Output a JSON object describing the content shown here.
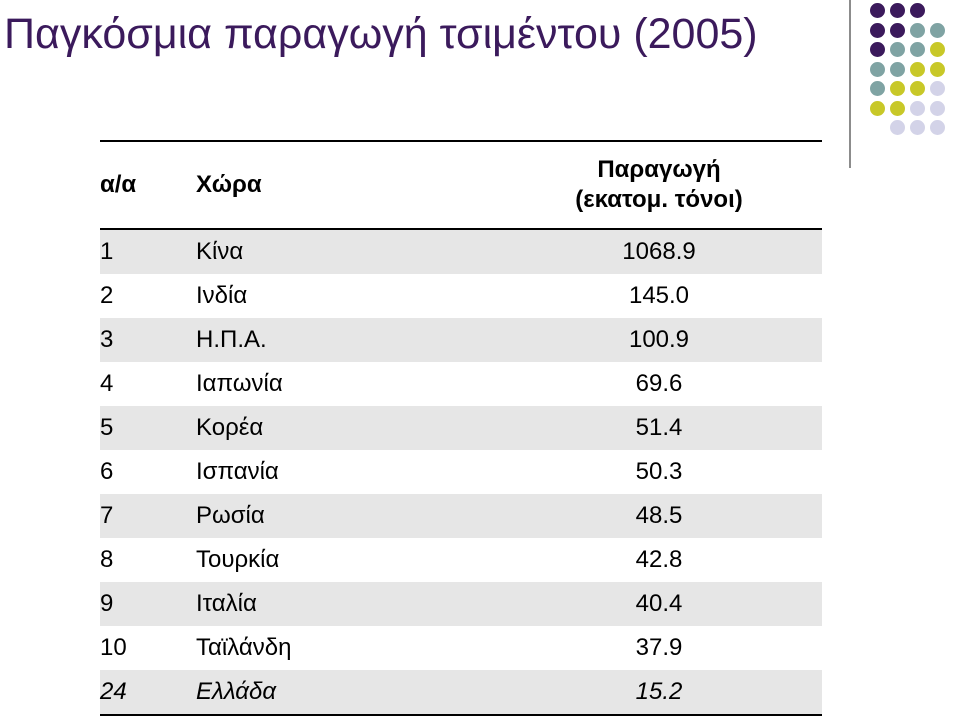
{
  "title": "Παγκόσμια παραγωγή τσιμέντου (2005)",
  "table": {
    "headers": {
      "rank": "α/α",
      "country": "Χώρα",
      "production_line1": "Παραγωγή",
      "production_line2": "(εκατομ. τόνοι)"
    },
    "rows": [
      {
        "rank": "1",
        "country": "Κίνα",
        "production": "1068.9"
      },
      {
        "rank": "2",
        "country": "Ινδία",
        "production": "145.0"
      },
      {
        "rank": "3",
        "country": "Η.Π.Α.",
        "production": "100.9"
      },
      {
        "rank": "4",
        "country": "Ιαπωνία",
        "production": "69.6"
      },
      {
        "rank": "5",
        "country": "Κορέα",
        "production": "51.4"
      },
      {
        "rank": "6",
        "country": "Ισπανία",
        "production": "50.3"
      },
      {
        "rank": "7",
        "country": "Ρωσία",
        "production": "48.5"
      },
      {
        "rank": "8",
        "country": "Τουρκία",
        "production": "42.8"
      },
      {
        "rank": "9",
        "country": "Ιταλία",
        "production": "40.4"
      },
      {
        "rank": "10",
        "country": "Ταϊλάνδη",
        "production": "37.9"
      },
      {
        "rank": "24",
        "country": "Ελλάδα",
        "production": "15.2"
      }
    ]
  },
  "colors": {
    "title": "#3b1a5c",
    "dot_purple": "#3b1a5c",
    "dot_teal": "#7fa3a3",
    "dot_yellow": "#c8c828",
    "dot_lavender": "#d3d3e8",
    "row_shade": "#e6e6e6"
  }
}
